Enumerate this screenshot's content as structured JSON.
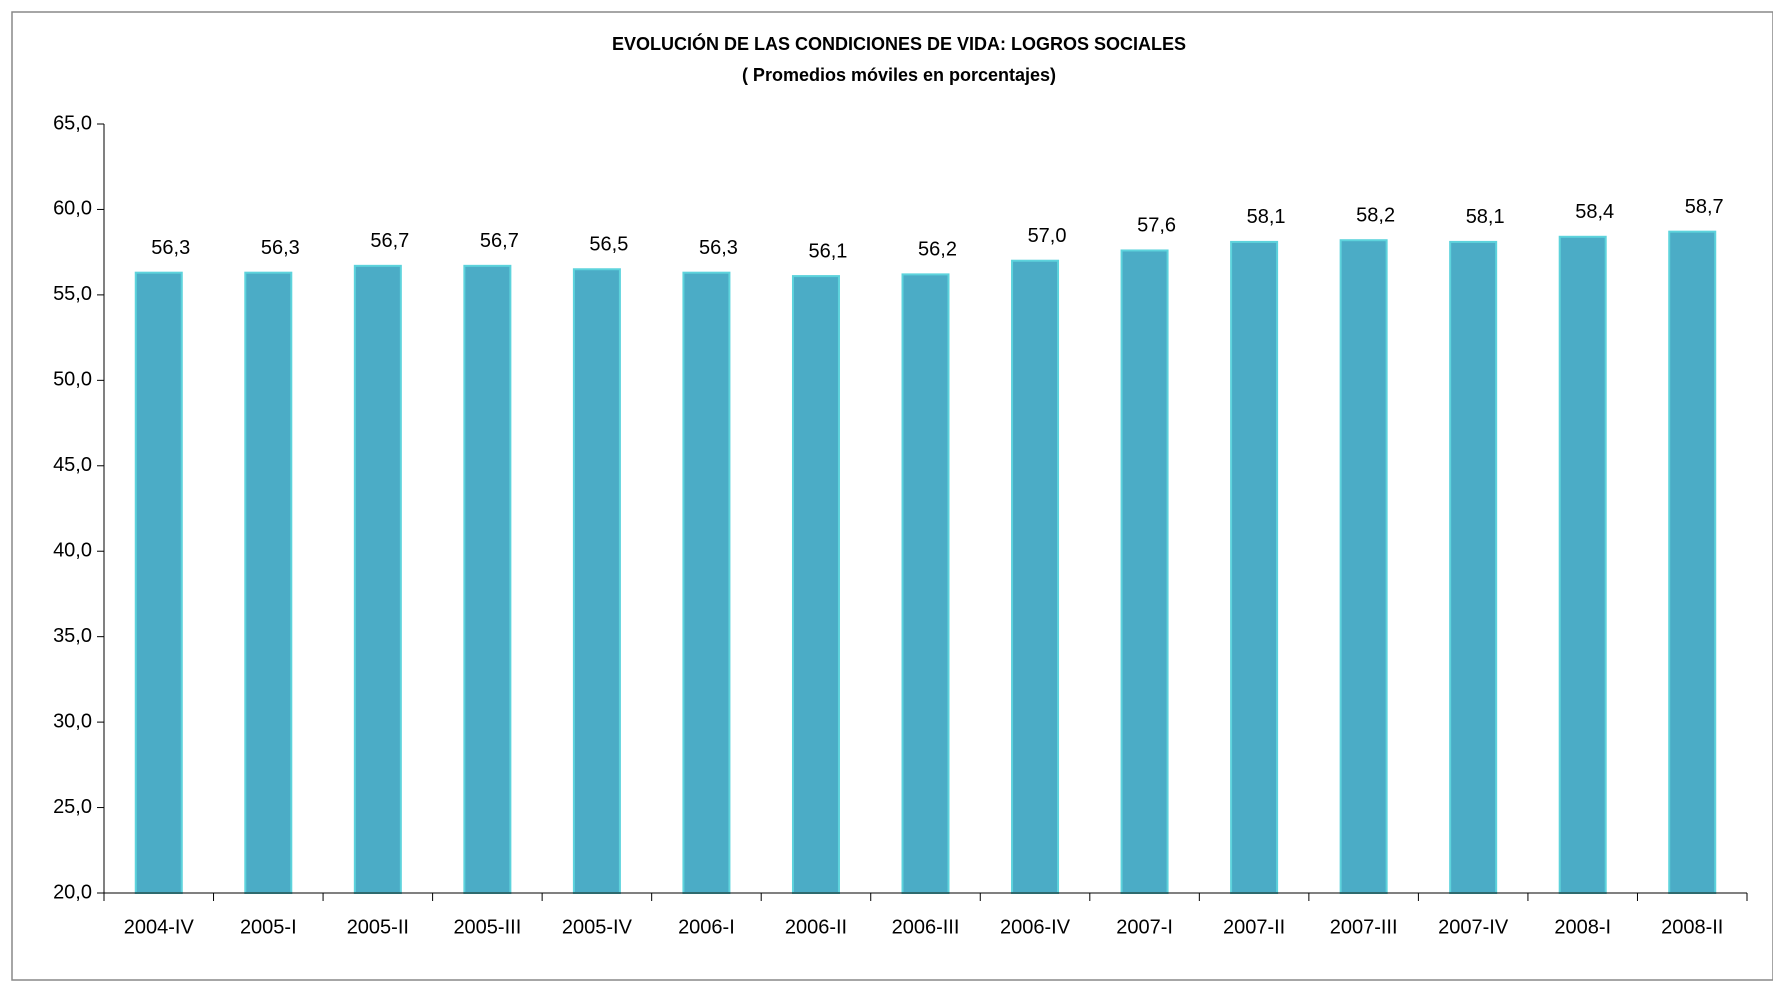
{
  "chart_data": {
    "type": "bar",
    "title": "EVOLUCIÓN DE LAS CONDICIONES DE VIDA: LOGROS  SOCIALES",
    "subtitle": "( Promedios móviles en porcentajes)",
    "categories": [
      "2004-IV",
      "2005-I",
      "2005-II",
      "2005-III",
      "2005-IV",
      "2006-I",
      "2006-II",
      "2006-III",
      "2006-IV",
      "2007-I",
      "2007-II",
      "2007-III",
      "2007-IV",
      "2008-I",
      "2008-II"
    ],
    "values": [
      56.3,
      56.3,
      56.7,
      56.7,
      56.5,
      56.3,
      56.1,
      56.2,
      57.0,
      57.6,
      58.1,
      58.2,
      58.1,
      58.4,
      58.7
    ],
    "value_labels": [
      "56,3",
      "56,3",
      "56,7",
      "56,7",
      "56,5",
      "56,3",
      "56,1",
      "56,2",
      "57,0",
      "57,6",
      "58,1",
      "58,2",
      "58,1",
      "58,4",
      "58,7"
    ],
    "color": "#4bacc6",
    "ylim": [
      20,
      65
    ],
    "yticks": [
      {
        "value": 20,
        "label": "20,0"
      },
      {
        "value": 25,
        "label": "25,0"
      },
      {
        "value": 30,
        "label": "30,0"
      },
      {
        "value": 35,
        "label": "35,0"
      },
      {
        "value": 40,
        "label": "40,0"
      },
      {
        "value": 45,
        "label": "45,0"
      },
      {
        "value": 50,
        "label": "50,0"
      },
      {
        "value": 55,
        "label": "55,0"
      },
      {
        "value": 60,
        "label": "60,0"
      },
      {
        "value": 65,
        "label": "65,0"
      }
    ],
    "grid": false
  }
}
